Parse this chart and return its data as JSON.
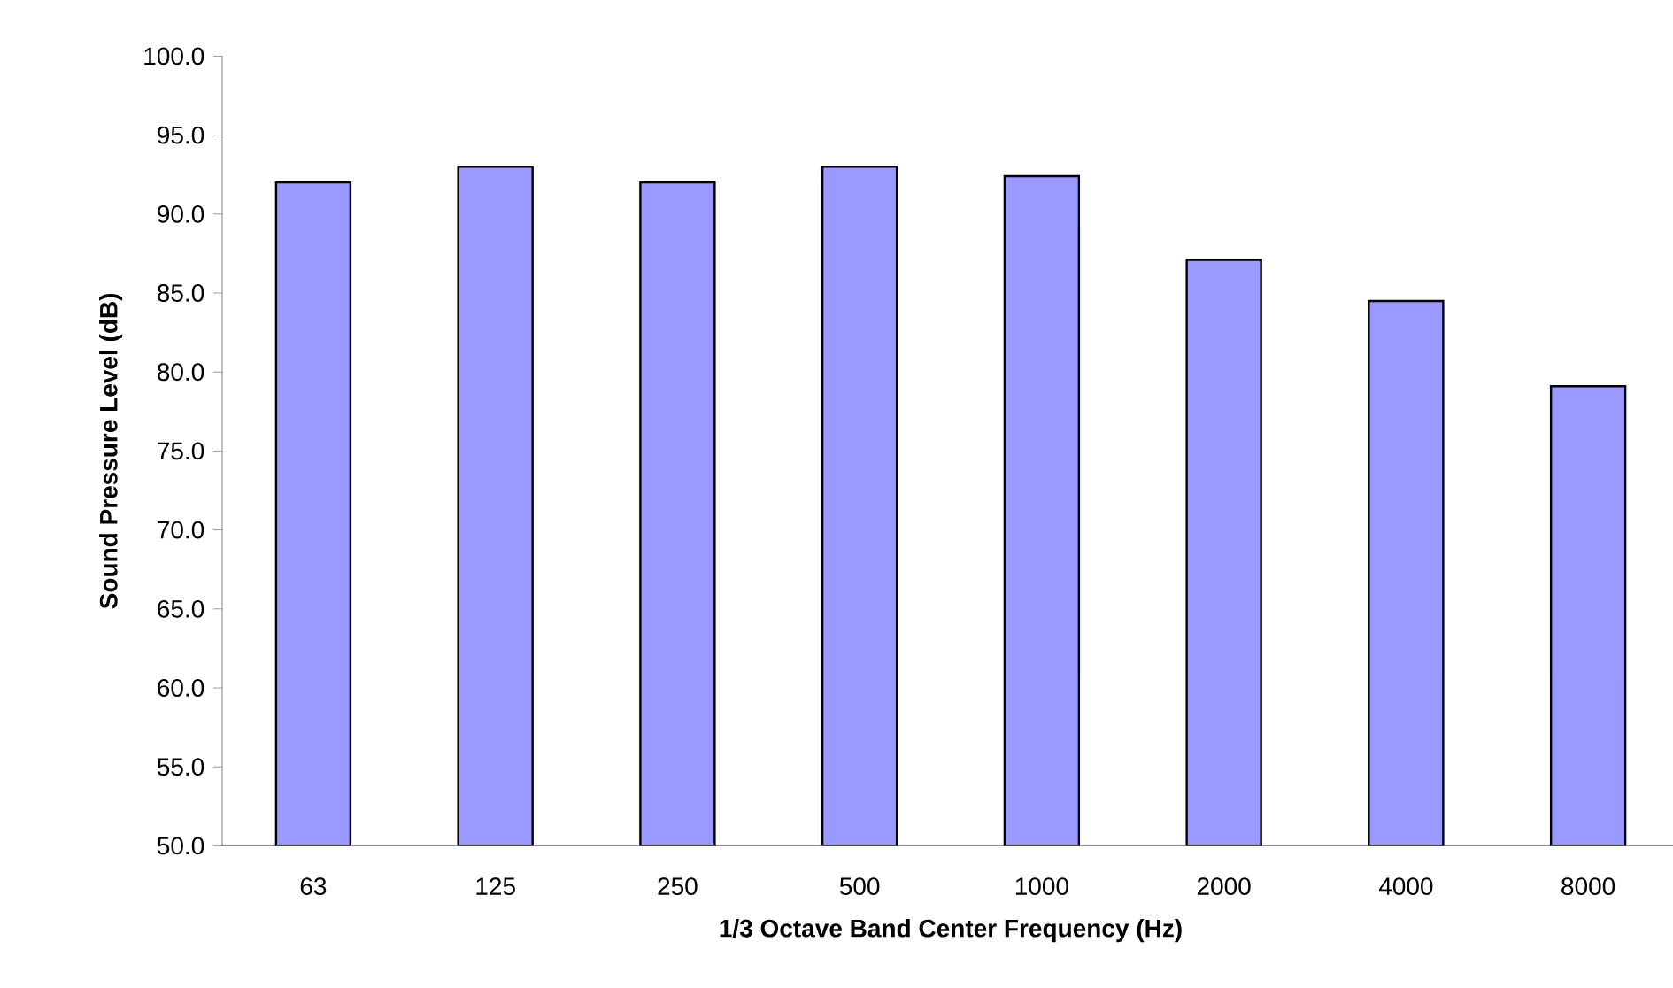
{
  "chart_data": {
    "type": "bar",
    "xlabel": "1/3 Octave Band Center Frequency (Hz)",
    "ylabel": "Sound Pressure Level (dB)",
    "categories": [
      "63",
      "125",
      "250",
      "500",
      "1000",
      "2000",
      "4000",
      "8000"
    ],
    "values": [
      92.0,
      93.0,
      92.0,
      93.0,
      92.4,
      87.1,
      84.5,
      79.1
    ],
    "color": "#9999ff",
    "ylim": [
      50,
      100
    ],
    "yticks": [
      {
        "value": 50,
        "label": "50.0"
      },
      {
        "value": 55,
        "label": "55.0"
      },
      {
        "value": 60,
        "label": "60.0"
      },
      {
        "value": 65,
        "label": "65.0"
      },
      {
        "value": 70,
        "label": "70.0"
      },
      {
        "value": 75,
        "label": "75.0"
      },
      {
        "value": 80,
        "label": "80.0"
      },
      {
        "value": 85,
        "label": "85.0"
      },
      {
        "value": 90,
        "label": "90.0"
      },
      {
        "value": 95,
        "label": "95.0"
      },
      {
        "value": 100,
        "label": "100.0"
      }
    ],
    "grid": false
  }
}
